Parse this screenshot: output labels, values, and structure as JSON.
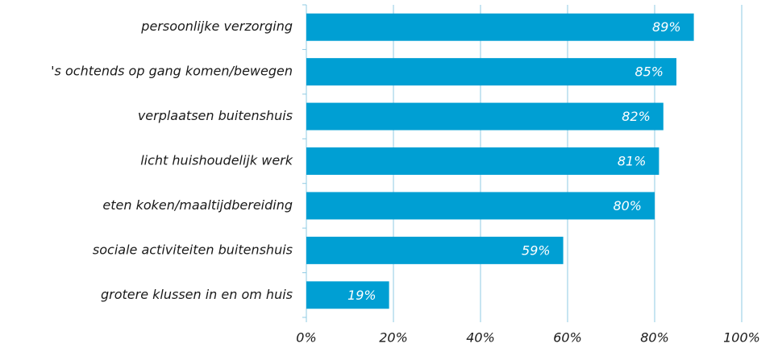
{
  "chart_data": {
    "type": "hbar",
    "categories": [
      "persoonlijke verzorging",
      "'s ochtends op gang komen/bewegen",
      "verplaatsen buitenshuis",
      "licht huishoudelijk werk",
      "eten koken/maaltijdbereiding",
      "sociale activiteiten buitenshuis",
      "grotere klussen in en om huis"
    ],
    "values": [
      89,
      85,
      82,
      81,
      80,
      59,
      19
    ],
    "value_labels": [
      "89%",
      "85%",
      "82%",
      "81%",
      "80%",
      "59%",
      "19%"
    ],
    "color": "#009fd3",
    "xlim": [
      0,
      100
    ],
    "xticks": [
      {
        "value": 0,
        "label": "0%"
      },
      {
        "value": 20,
        "label": "20%"
      },
      {
        "value": 40,
        "label": "40%"
      },
      {
        "value": 60,
        "label": "60%"
      },
      {
        "value": 80,
        "label": "80%"
      },
      {
        "value": 100,
        "label": "100%"
      }
    ],
    "grid": true
  }
}
